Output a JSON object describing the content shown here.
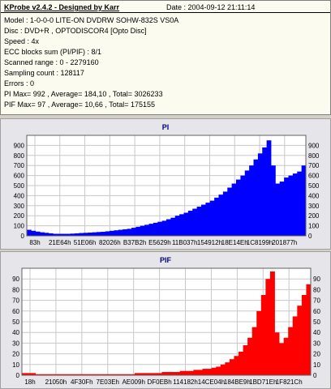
{
  "report": {
    "header": "KProbe v2.4.2 - Designed by Karr",
    "date": "Date : 2004-09-12 21:11:14",
    "lines": [
      "Model : 1-0-0-0 LITE-ON DVDRW SOHW-832S  VS0A",
      "Disc : DVD+R , OPTODISCOR4 [Opto Disc]",
      "Speed : 4x",
      "ECC blocks sum (PI/PIF) : 8/1",
      "Scanned range : 0 - 2279160",
      "Sampling count : 128117",
      "Errors : 0",
      "PI Max= 992 , Average= 184,10 , Total= 3026233",
      "PIF Max= 97 , Average= 10,66 , Total= 175155"
    ]
  },
  "colors": {
    "pi": "#0000ff",
    "pif": "#ff0000",
    "plot_bg": "#ffffff",
    "grid": "#c8c8c8",
    "title": "#000080"
  },
  "chart_data": [
    {
      "type": "area",
      "title": "PI",
      "xlabel": "",
      "ylabel": "",
      "ylim": [
        0,
        1000
      ],
      "yticks": [
        0,
        100,
        200,
        300,
        400,
        500,
        600,
        700,
        800,
        900
      ],
      "xticks": [
        "83h",
        "21E64h",
        "51E06h",
        "82026h",
        "B37B2h",
        "E5629h",
        "11B037h",
        "154912h",
        "18E14Eh",
        "1C8199h",
        "201877h"
      ],
      "grid": true,
      "series": [
        {
          "values": [
            60,
            50,
            42,
            35,
            30,
            25,
            20,
            20,
            20,
            20,
            22,
            25,
            28,
            30,
            32,
            35,
            38,
            40,
            45,
            50,
            55,
            60,
            65,
            70,
            80,
            90,
            100,
            110,
            120,
            130,
            140,
            150,
            165,
            180,
            200,
            215,
            230,
            250,
            270,
            290,
            310,
            330,
            350,
            380,
            410,
            440,
            480,
            520,
            560,
            600,
            650,
            700,
            760,
            820,
            880,
            950,
            700,
            520,
            540,
            580,
            600,
            620,
            640,
            700
          ]
        }
      ]
    },
    {
      "type": "area",
      "title": "PIF",
      "xlabel": "",
      "ylabel": "",
      "ylim": [
        0,
        100
      ],
      "yticks": [
        0,
        10,
        20,
        30,
        40,
        50,
        60,
        70,
        80,
        90
      ],
      "xticks": [
        "18h",
        "21050h",
        "4F30Fh",
        "7E03Eh",
        "AE009h",
        "DF0EBh",
        "114182h",
        "14CE04h",
        "184BE9h",
        "1BD71Eh",
        "1F821Ch"
      ],
      "grid": true,
      "series": [
        {
          "values": [
            2,
            2,
            2,
            1,
            1,
            1,
            1,
            1,
            1,
            1,
            1,
            1,
            1,
            1,
            1,
            1,
            1,
            1,
            1,
            1,
            1,
            1,
            1,
            1,
            1,
            2,
            2,
            2,
            2,
            2,
            2,
            3,
            3,
            3,
            3,
            4,
            4,
            4,
            5,
            5,
            6,
            6,
            7,
            8,
            10,
            12,
            15,
            18,
            22,
            28,
            35,
            45,
            60,
            75,
            90,
            97,
            40,
            30,
            35,
            45,
            55,
            65,
            75,
            85
          ]
        }
      ]
    }
  ]
}
